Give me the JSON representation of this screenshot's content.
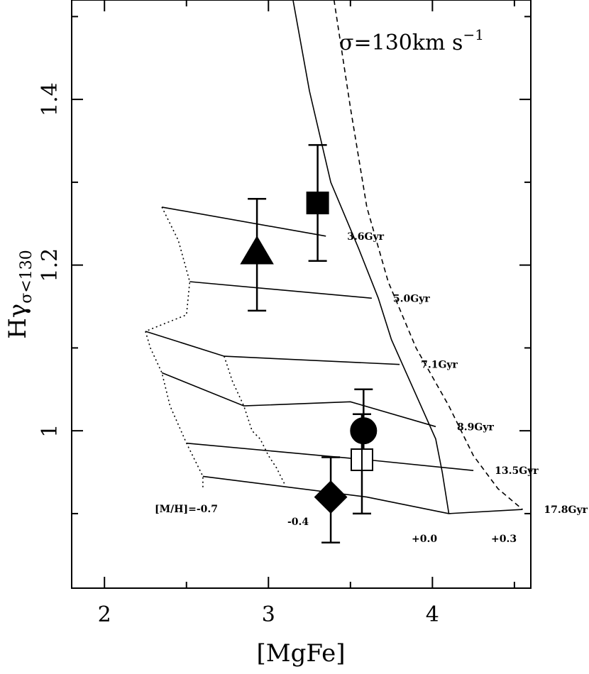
{
  "chart_data": {
    "type": "scatter",
    "xlabel": "[MgFe]",
    "ylabel": "Hγσ<130",
    "ylabel_main": "Hγ",
    "ylabel_sub": "σ<130",
    "xlim": [
      1.8,
      4.6
    ],
    "ylim": [
      0.81,
      1.52
    ],
    "xticks": [
      2,
      3,
      4
    ],
    "xtick_labels": [
      "2",
      "3",
      "4"
    ],
    "yticks": [
      1.0,
      1.2,
      1.4
    ],
    "ytick_labels": [
      "1",
      "1.2",
      "1.4"
    ],
    "annotation": {
      "main": "σ=130km s",
      "sup": "−1"
    },
    "grid": {
      "age_lines": [
        {
          "label": "3.6Gyr",
          "points": [
            [
              2.35,
              1.27
            ],
            [
              3.35,
              1.235
            ]
          ]
        },
        {
          "label": "5.0Gyr",
          "points": [
            [
              2.52,
              1.18
            ],
            [
              3.63,
              1.16
            ]
          ]
        },
        {
          "label": "7.1Gyr",
          "points": [
            [
              2.25,
              1.12
            ],
            [
              2.73,
              1.09
            ],
            [
              3.8,
              1.08
            ]
          ]
        },
        {
          "label": "8.9Gyr",
          "points": [
            [
              2.35,
              1.07
            ],
            [
              2.85,
              1.03
            ],
            [
              3.5,
              1.035
            ],
            [
              4.02,
              1.005
            ]
          ]
        },
        {
          "label": "13.5Gyr",
          "points": [
            [
              2.5,
              0.985
            ],
            [
              3.6,
              0.965
            ],
            [
              4.25,
              0.952
            ]
          ]
        },
        {
          "label": "17.8Gyr",
          "points": [
            [
              2.6,
              0.945
            ],
            [
              3.6,
              0.92
            ],
            [
              4.1,
              0.9
            ],
            [
              4.55,
              0.905
            ]
          ]
        }
      ],
      "metal_lines": [
        {
          "label": "[M/H]=-0.7",
          "dash": "dotted",
          "points": [
            [
              2.35,
              1.27
            ],
            [
              2.45,
              1.23
            ],
            [
              2.52,
              1.18
            ],
            [
              2.5,
              1.14
            ],
            [
              2.25,
              1.12
            ],
            [
              2.28,
              1.1
            ],
            [
              2.35,
              1.07
            ],
            [
              2.4,
              1.03
            ],
            [
              2.5,
              0.985
            ],
            [
              2.55,
              0.965
            ],
            [
              2.6,
              0.945
            ],
            [
              2.6,
              0.93
            ]
          ]
        },
        {
          "label": "-0.4",
          "dash": "dotted",
          "points": [
            [
              2.73,
              1.09
            ],
            [
              2.78,
              1.06
            ],
            [
              2.85,
              1.03
            ],
            [
              2.9,
              1.0
            ],
            [
              2.95,
              0.99
            ],
            [
              3.0,
              0.97
            ],
            [
              3.05,
              0.955
            ],
            [
              3.1,
              0.935
            ]
          ]
        },
        {
          "label": "+0.0",
          "dash": "solid",
          "points": [
            [
              3.15,
              1.52
            ],
            [
              3.25,
              1.41
            ],
            [
              3.38,
              1.3
            ],
            [
              3.55,
              1.22
            ],
            [
              3.67,
              1.16
            ],
            [
              3.75,
              1.11
            ],
            [
              3.84,
              1.07
            ],
            [
              3.93,
              1.03
            ],
            [
              4.02,
              0.99
            ],
            [
              4.06,
              0.95
            ],
            [
              4.1,
              0.9
            ]
          ]
        },
        {
          "label": "+0.3",
          "dash": "dashed",
          "points": [
            [
              3.4,
              1.52
            ],
            [
              3.5,
              1.39
            ],
            [
              3.6,
              1.27
            ],
            [
              3.73,
              1.18
            ],
            [
              3.9,
              1.1
            ],
            [
              4.1,
              1.03
            ],
            [
              4.25,
              0.97
            ],
            [
              4.4,
              0.93
            ],
            [
              4.55,
              0.905
            ]
          ]
        }
      ]
    },
    "series": [
      {
        "marker": "square",
        "fill": "filled",
        "x": 3.3,
        "y": 1.275,
        "yerr_low": 1.205,
        "yerr_high": 1.345
      },
      {
        "marker": "triangle",
        "fill": "filled",
        "x": 2.93,
        "y": 1.215,
        "yerr_low": 1.145,
        "yerr_high": 1.28
      },
      {
        "marker": "circle",
        "fill": "filled",
        "x": 3.58,
        "y": 1.0,
        "yerr_low": 0.97,
        "yerr_high": 1.05
      },
      {
        "marker": "square",
        "fill": "open",
        "x": 3.57,
        "y": 0.965,
        "yerr_low": 0.9,
        "yerr_high": 1.02
      },
      {
        "marker": "diamond",
        "fill": "filled",
        "x": 3.38,
        "y": 0.92,
        "yerr_low": 0.865,
        "yerr_high": 0.968
      }
    ]
  }
}
